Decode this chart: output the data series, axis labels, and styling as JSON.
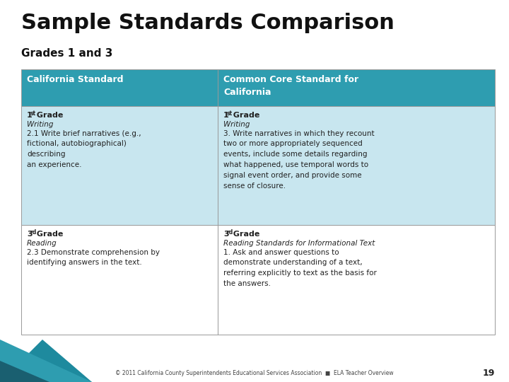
{
  "title": "Sample Standards Comparison",
  "subtitle": "Grades 1 and 3",
  "bg_color": "#ffffff",
  "header_color": "#2E9DB0",
  "row1_color": "#C8E6EF",
  "row2_color": "#ffffff",
  "header_text_color": "#ffffff",
  "body_text_color": "#222222",
  "col1_header": "California Standard",
  "col2_header": "Common Core Standard for\nCalifornia",
  "col1_row1_italic": "Writing",
  "col1_row1_body": "2.1 Write brief narratives (e.g.,\nfictional, autobiographical)\ndescribing\nan experience.",
  "col2_row1_italic": "Writing",
  "col2_row1_body": "3. Write narratives in which they recount\ntwo or more appropriately sequenced\nevents, include some details regarding\nwhat happened, use temporal words to\nsignal event order, and provide some\nsense of closure.",
  "col1_row2_italic": "Reading",
  "col1_row2_body": "2.3 Demonstrate comprehension by\nidentifying answers in the text.",
  "col2_row2_italic": "Reading Standards for Informational Text",
  "col2_row2_body": "1. Ask and answer questions to\ndemonstrate understanding of a text,\nreferring explicitly to text as the basis for\nthe answers.",
  "footer": "© 2011 California County Superintendents Educational Services Association  ■  ELA Teacher Overview",
  "footer_page": "19",
  "title_fontsize": 22,
  "subtitle_fontsize": 11,
  "header_fontsize": 9,
  "body_fontsize": 7.5,
  "col_split": 0.415,
  "teal_dark": "#1A5F70",
  "teal_mid": "#1E8A9E",
  "teal_light": "#2E9DB0"
}
